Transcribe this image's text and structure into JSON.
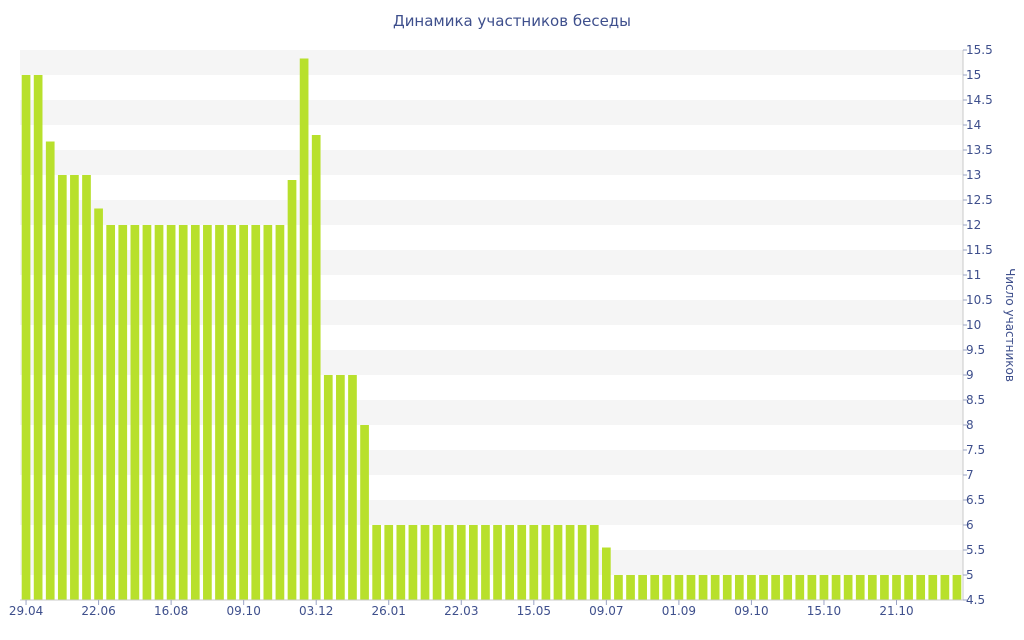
{
  "chart_data": {
    "type": "bar",
    "title": "Динамика участников беседы",
    "ylabel": "Число участников",
    "xlabel": "",
    "ylim": [
      4.5,
      15.5
    ],
    "y_axis_side": "right",
    "ytick_step": 0.5,
    "grid": "alternating horizontal bands",
    "bar_color": "#b8e02c",
    "band_color": "#f5f5f5",
    "text_color": "#3e4f8c",
    "x_tick_labels": [
      "29.04",
      "22.06",
      "16.08",
      "09.10",
      "03.12",
      "26.01",
      "22.03",
      "15.05",
      "09.07",
      "01.09",
      "09.10",
      "15.10",
      "21.10"
    ],
    "x_tick_bar_index": [
      0,
      6,
      12,
      18,
      24,
      30,
      36,
      42,
      48,
      54,
      60,
      66,
      72
    ],
    "values": [
      15,
      15,
      13.67,
      13,
      13,
      13,
      12.33,
      12,
      12,
      12,
      12,
      12,
      12,
      12,
      12,
      12,
      12,
      12,
      12,
      12,
      12,
      12,
      12.9,
      15.33,
      13.8,
      9,
      9,
      9,
      8,
      6,
      6,
      6,
      6,
      6,
      6,
      6,
      6,
      6,
      6,
      6,
      6,
      6,
      6,
      6,
      6,
      6,
      6,
      6,
      5.55,
      5,
      5,
      5,
      5,
      5,
      5,
      5,
      5,
      5,
      5,
      5,
      5,
      5,
      5,
      5,
      5,
      5,
      5,
      5,
      5,
      5,
      5,
      5,
      5,
      5,
      5,
      5,
      5,
      5
    ]
  }
}
